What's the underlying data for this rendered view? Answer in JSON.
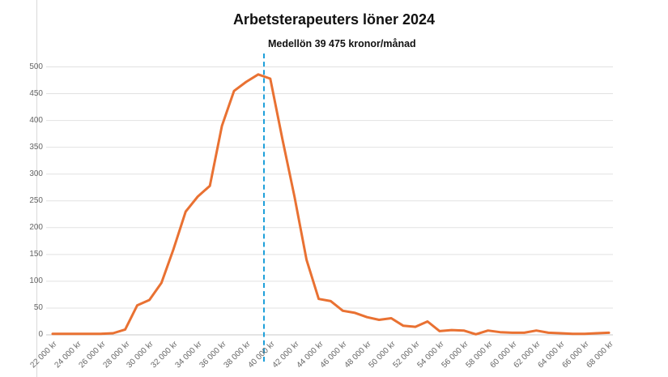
{
  "chart": {
    "title": "Arbetsterapeuters löner 2024",
    "annotation": "Medellön 39 475 kronor/månad"
  },
  "chart_data": {
    "type": "line",
    "title": "Arbetsterapeuters löner 2024",
    "annotation": "Medellön 39 475 kronor/månad",
    "mean_value": 39475,
    "x_unit": "kronor/månad",
    "x": [
      22000,
      23000,
      24000,
      25000,
      26000,
      27000,
      28000,
      29000,
      30000,
      31000,
      32000,
      33000,
      34000,
      35000,
      36000,
      37000,
      38000,
      39000,
      40000,
      41000,
      42000,
      43000,
      44000,
      45000,
      46000,
      47000,
      48000,
      49000,
      50000,
      51000,
      52000,
      53000,
      54000,
      55000,
      56000,
      57000,
      58000,
      59000,
      60000,
      61000,
      62000,
      63000,
      64000,
      65000,
      66000,
      67000,
      68000
    ],
    "y": [
      2,
      2,
      2,
      2,
      2,
      3,
      10,
      55,
      65,
      97,
      160,
      230,
      258,
      278,
      390,
      455,
      472,
      486,
      478,
      365,
      258,
      140,
      67,
      63,
      45,
      41,
      33,
      28,
      31,
      17,
      15,
      25,
      7,
      9,
      8,
      1,
      8,
      5,
      4,
      4,
      8,
      4,
      3,
      2,
      2,
      3,
      4
    ],
    "x_tick_labels": [
      "22 000 kr",
      "24 000 kr",
      "26 000 kr",
      "28 000 kr",
      "30 000 kr",
      "32 000 kr",
      "34 000 kr",
      "36 000 kr",
      "38 000 kr",
      "40 000 kr",
      "42 000 kr",
      "44 000 kr",
      "46 000 kr",
      "48 000 kr",
      "50 000 kr",
      "52 000 kr",
      "54 000 kr",
      "56 000 kr",
      "58 000 kr",
      "60 000 kr",
      "62 000 kr",
      "64 000 kr",
      "66 000 kr",
      "68 000 kr"
    ],
    "y_ticks": [
      0,
      50,
      100,
      150,
      200,
      250,
      300,
      350,
      400,
      450,
      500
    ],
    "ylim": [
      0,
      500
    ],
    "grid": "horizontal",
    "legend": "none",
    "line_color": "#E97132",
    "mean_line_color": "#1FA0DA",
    "axis_label_color": "#666666",
    "gridline_color": "#e2e2e2",
    "axis_line_color": "#c9c9c9"
  }
}
